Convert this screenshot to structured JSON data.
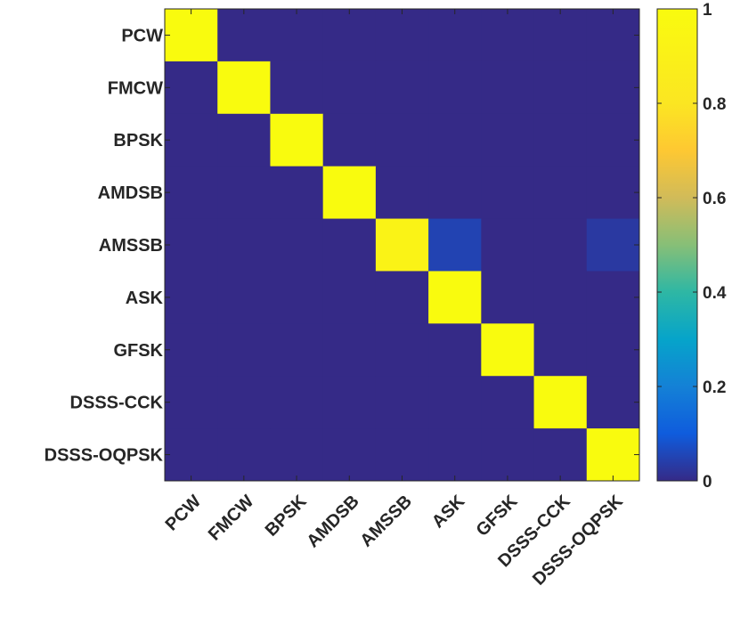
{
  "chart_data": {
    "type": "heatmap",
    "title": "",
    "xlabel": "",
    "ylabel": "",
    "categories": [
      "PCW",
      "FMCW",
      "BPSK",
      "AMDSB",
      "AMSSB",
      "ASK",
      "GFSK",
      "DSSS-CCK",
      "DSSS-OQPSK"
    ],
    "row_labels": [
      "PCW",
      "FMCW",
      "BPSK",
      "AMDSB",
      "AMSSB",
      "ASK",
      "GFSK",
      "DSSS-CCK",
      "DSSS-OQPSK"
    ],
    "col_labels": [
      "PCW",
      "FMCW",
      "BPSK",
      "AMDSB",
      "AMSSB",
      "ASK",
      "GFSK",
      "DSSS-CCK",
      "DSSS-OQPSK"
    ],
    "matrix": [
      [
        1,
        0,
        0,
        0,
        0,
        0,
        0,
        0,
        0
      ],
      [
        0,
        1,
        0,
        0,
        0,
        0,
        0,
        0,
        0
      ],
      [
        0,
        0,
        1,
        0,
        0,
        0,
        0,
        0,
        0
      ],
      [
        0,
        0,
        0,
        1,
        0,
        0,
        0,
        0,
        0
      ],
      [
        0,
        0,
        0,
        0,
        0.92,
        0.05,
        0,
        0,
        0.03
      ],
      [
        0,
        0,
        0,
        0,
        0,
        1,
        0,
        0,
        0
      ],
      [
        0,
        0,
        0,
        0,
        0,
        0,
        1,
        0,
        0
      ],
      [
        0,
        0,
        0,
        0,
        0,
        0,
        0,
        1,
        0
      ],
      [
        0,
        0,
        0,
        0,
        0,
        0,
        0,
        0,
        1
      ]
    ],
    "colorbar": {
      "range": [
        0,
        1
      ],
      "ticks": [
        0,
        0.2,
        0.4,
        0.6,
        0.8,
        1
      ],
      "tick_labels": [
        "0",
        "0.2",
        "0.4",
        "0.6",
        "0.8",
        "1"
      ],
      "colormap": "parula"
    }
  }
}
